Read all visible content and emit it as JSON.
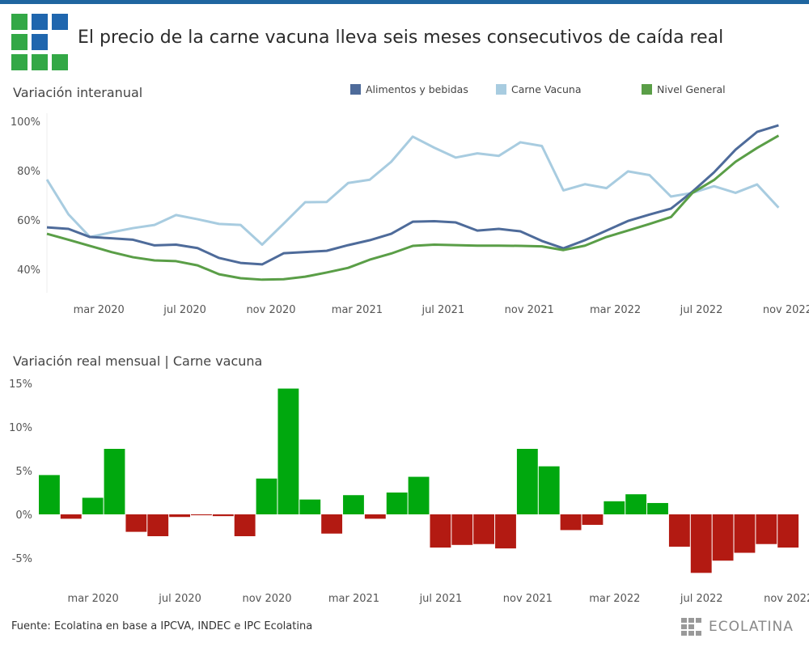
{
  "header": {
    "title": "El precio de la carne vacuna lleva seis meses consecutivos de caída real"
  },
  "colors": {
    "topbar": "#1f66a0",
    "logo_green": "#33a846",
    "logo_blue": "#1f66ae",
    "alimentos": "#4e6b9a",
    "carne": "#a8cce0",
    "nivel": "#5a9e47",
    "positive": "#00a80e",
    "negative": "#b31a12"
  },
  "chart_data": [
    {
      "type": "line",
      "title": "Variación interanual",
      "x": [
        "ene 2020",
        "feb 2020",
        "mar 2020",
        "abr 2020",
        "may 2020",
        "jun 2020",
        "jul 2020",
        "ago 2020",
        "sep 2020",
        "oct 2020",
        "nov 2020",
        "dic 2020",
        "ene 2021",
        "feb 2021",
        "mar 2021",
        "abr 2021",
        "may 2021",
        "jun 2021",
        "jul 2021",
        "ago 2021",
        "sep 2021",
        "oct 2021",
        "nov 2021",
        "dic 2021",
        "ene 2022",
        "feb 2022",
        "mar 2022",
        "abr 2022",
        "may 2022",
        "jun 2022",
        "jul 2022",
        "ago 2022",
        "sep 2022",
        "oct 2022",
        "nov 2022"
      ],
      "xticks": [
        {
          "index": 2,
          "label": "mar 2020"
        },
        {
          "index": 6,
          "label": "jul 2020"
        },
        {
          "index": 10,
          "label": "nov 2020"
        },
        {
          "index": 14,
          "label": "mar 2021"
        },
        {
          "index": 18,
          "label": "jul 2021"
        },
        {
          "index": 22,
          "label": "nov 2021"
        },
        {
          "index": 26,
          "label": "mar 2022"
        },
        {
          "index": 30,
          "label": "jul 2022"
        },
        {
          "index": 34,
          "label": "nov 2022"
        }
      ],
      "yticks": [
        {
          "value": 100,
          "label": "100%"
        },
        {
          "value": 80,
          "label": "80%"
        },
        {
          "value": 60,
          "label": "60%"
        },
        {
          "value": 40,
          "label": "40%"
        }
      ],
      "ylim": [
        30,
        100
      ],
      "legend_placement": "top-right",
      "series": [
        {
          "name": "Alimentos y bebidas",
          "color": "#4e6b9a",
          "values": [
            57,
            56.4,
            53.1,
            52.6,
            52,
            49.7,
            50,
            48.6,
            44.6,
            42.6,
            42,
            46.5,
            47,
            47.5,
            49.8,
            51.8,
            54.4,
            59.3,
            59.5,
            59,
            55.7,
            56.4,
            55.4,
            51.5,
            48.5,
            51.8,
            55.7,
            59.6,
            62.2,
            64.6,
            71.5,
            79.3,
            88.5,
            95.7,
            98.4
          ]
        },
        {
          "name": "Carne Vacuna",
          "color": "#a8cce0",
          "values": [
            76.4,
            62.3,
            53.1,
            55,
            56.7,
            58,
            62,
            60.3,
            58.4,
            58,
            50,
            58.5,
            67.2,
            67.3,
            75,
            76.3,
            83.6,
            93.8,
            89.3,
            85.3,
            87,
            86,
            91.5,
            90,
            72,
            74.5,
            72.9,
            79.7,
            78.2,
            69.5,
            71,
            73.7,
            71,
            74.4,
            65
          ]
        },
        {
          "name": "Nivel General",
          "color": "#5a9e47",
          "values": [
            54.4,
            52,
            49.5,
            47,
            44.9,
            43.6,
            43.3,
            41.6,
            38,
            36.4,
            35.8,
            36,
            37,
            38.7,
            40.6,
            43.9,
            46.4,
            49.5,
            50,
            49.8,
            49.6,
            49.6,
            49.5,
            49.3,
            47.8,
            49.6,
            53.1,
            55.7,
            58.4,
            61.2,
            71,
            76.2,
            83.6,
            89.2,
            94.2
          ]
        }
      ]
    },
    {
      "type": "bar",
      "title": "Variación real mensual | Carne vacuna",
      "xticks": [
        {
          "index": 2,
          "label": "mar 2020"
        },
        {
          "index": 6,
          "label": "jul 2020"
        },
        {
          "index": 10,
          "label": "nov 2020"
        },
        {
          "index": 14,
          "label": "mar 2021"
        },
        {
          "index": 18,
          "label": "jul 2021"
        },
        {
          "index": 22,
          "label": "nov 2021"
        },
        {
          "index": 26,
          "label": "mar 2022"
        },
        {
          "index": 30,
          "label": "jul 2022"
        },
        {
          "index": 34,
          "label": "nov 2022"
        }
      ],
      "yticks": [
        {
          "value": 15,
          "label": "15%"
        },
        {
          "value": 10,
          "label": "10%"
        },
        {
          "value": 5,
          "label": "5%"
        },
        {
          "value": 0,
          "label": "0%"
        },
        {
          "value": -5,
          "label": "-5%"
        }
      ],
      "ylim": [
        -8,
        16
      ],
      "values": [
        4.5,
        -0.5,
        1.9,
        7.5,
        -2.0,
        -2.5,
        -0.3,
        -0.1,
        -0.2,
        -2.5,
        4.1,
        14.4,
        1.7,
        -2.2,
        2.2,
        -0.5,
        2.5,
        4.3,
        -3.8,
        -3.5,
        -3.4,
        -3.9,
        7.5,
        5.5,
        -1.8,
        -1.2,
        1.5,
        2.3,
        1.3,
        -3.7,
        -6.7,
        -5.3,
        -4.4,
        -3.4,
        -3.8
      ]
    }
  ],
  "footer": {
    "source": "Fuente: Ecolatina en base a IPCVA, INDEC e IPC Ecolatina",
    "brand": "ECOLATINA"
  }
}
